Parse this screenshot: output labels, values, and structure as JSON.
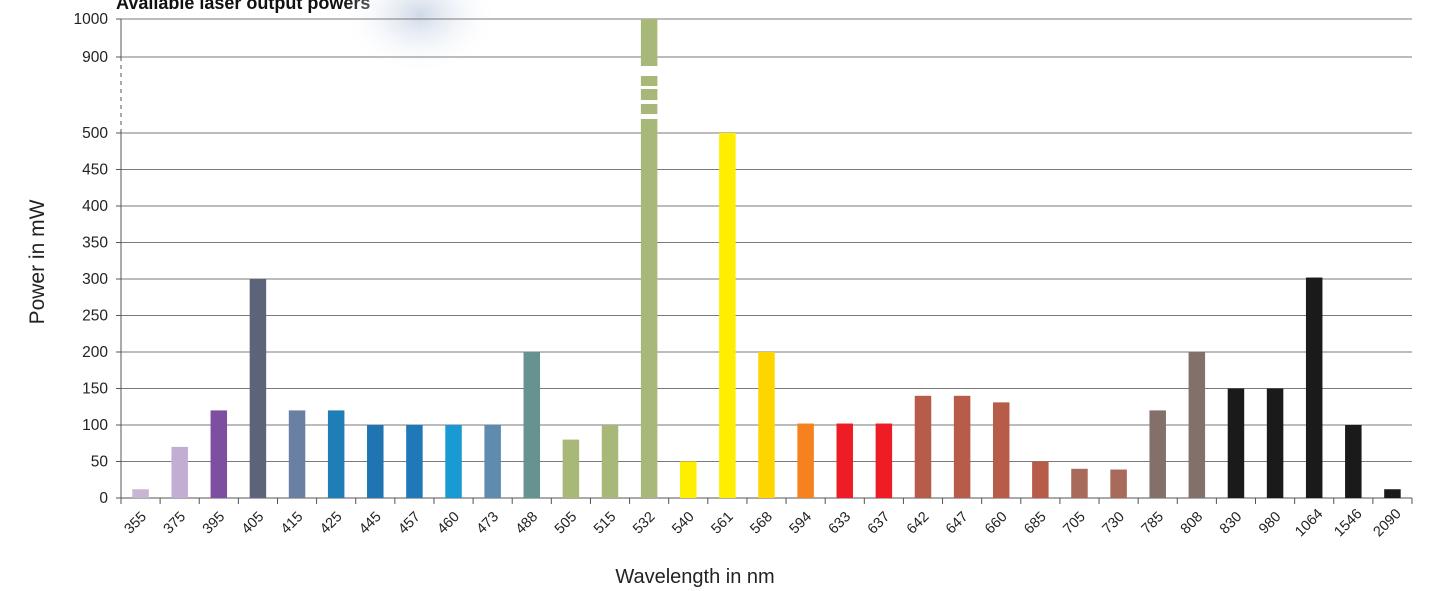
{
  "chart_data": {
    "type": "bar",
    "title": "Available laser output powers",
    "xlabel": "Wavelength in nm",
    "ylabel": "Power in mW",
    "y_ticks": [
      0,
      50,
      100,
      150,
      200,
      250,
      300,
      350,
      400,
      450,
      500,
      900,
      1000
    ],
    "y_axis_break": [
      500,
      900
    ],
    "grid": true,
    "legend": "none",
    "categories": [
      "355",
      "375",
      "395",
      "405",
      "415",
      "425",
      "445",
      "457",
      "460",
      "473",
      "488",
      "505",
      "515",
      "532",
      "540",
      "561",
      "568",
      "594",
      "633",
      "637",
      "642",
      "647",
      "660",
      "685",
      "705",
      "730",
      "785",
      "808",
      "830",
      "980",
      "1064",
      "1546",
      "2090"
    ],
    "values": [
      12,
      70,
      120,
      300,
      120,
      120,
      100,
      100,
      100,
      100,
      200,
      80,
      100,
      1000,
      50,
      500,
      200,
      102,
      102,
      102,
      140,
      140,
      131,
      50,
      40,
      39,
      120,
      200,
      150,
      150,
      302,
      100,
      12
    ],
    "colors": [
      "#c7b6d3",
      "#c2aed2",
      "#7c4fa1",
      "#5b6478",
      "#6980a2",
      "#1f7eb5",
      "#1f74b2",
      "#1f78b8",
      "#1a9ad2",
      "#5f8cae",
      "#66928f",
      "#a8b878",
      "#a8b878",
      "#a8b878",
      "#ffee00",
      "#ffee00",
      "#ffd500",
      "#f5821f",
      "#ee1c25",
      "#ee1c25",
      "#b85c4a",
      "#b85c4a",
      "#b85c4a",
      "#b85c4a",
      "#a86a5a",
      "#a86a5a",
      "#84706a",
      "#84706a",
      "#1a1a1a",
      "#1a1a1a",
      "#1a1a1a",
      "#1a1a1a",
      "#1a1a1a"
    ]
  }
}
